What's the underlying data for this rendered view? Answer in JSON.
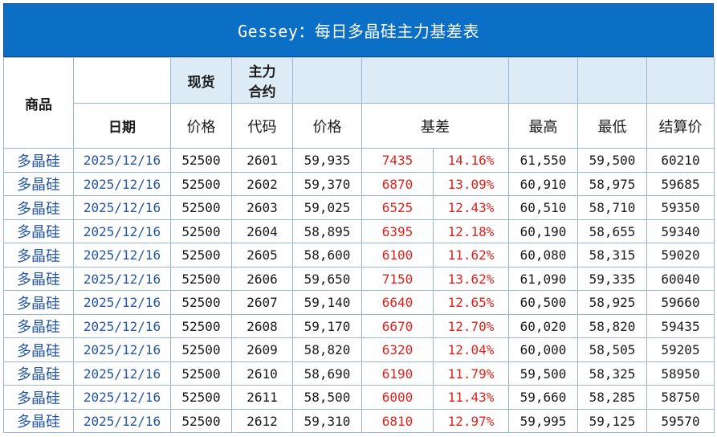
{
  "title": "Gessey：每日多晶硅主力基差表",
  "headers": {
    "commodity": "商品",
    "spot": "现货",
    "main_contract_l1": "主力",
    "main_contract_l2": "合约",
    "date": "日期",
    "spot_price": "价格",
    "contract_code": "代码",
    "price": "价格",
    "basis": "基差",
    "high": "最高",
    "low": "最低",
    "settle": "结算价"
  },
  "rows": [
    {
      "commodity": "多晶硅",
      "date": "2025/12/16",
      "spot": "52500",
      "code": "2601",
      "price": "59,935",
      "basis": "7435",
      "basis_pct": "14.16%",
      "high": "61,550",
      "low": "59,500",
      "settle": "60210"
    },
    {
      "commodity": "多晶硅",
      "date": "2025/12/16",
      "spot": "52500",
      "code": "2602",
      "price": "59,370",
      "basis": "6870",
      "basis_pct": "13.09%",
      "high": "60,910",
      "low": "58,975",
      "settle": "59685"
    },
    {
      "commodity": "多晶硅",
      "date": "2025/12/16",
      "spot": "52500",
      "code": "2603",
      "price": "59,025",
      "basis": "6525",
      "basis_pct": "12.43%",
      "high": "60,510",
      "low": "58,710",
      "settle": "59350"
    },
    {
      "commodity": "多晶硅",
      "date": "2025/12/16",
      "spot": "52500",
      "code": "2604",
      "price": "58,895",
      "basis": "6395",
      "basis_pct": "12.18%",
      "high": "60,190",
      "low": "58,655",
      "settle": "59340"
    },
    {
      "commodity": "多晶硅",
      "date": "2025/12/16",
      "spot": "52500",
      "code": "2605",
      "price": "58,600",
      "basis": "6100",
      "basis_pct": "11.62%",
      "high": "60,080",
      "low": "58,315",
      "settle": "59020"
    },
    {
      "commodity": "多晶硅",
      "date": "2025/12/16",
      "spot": "52500",
      "code": "2606",
      "price": "59,650",
      "basis": "7150",
      "basis_pct": "13.62%",
      "high": "61,090",
      "low": "59,335",
      "settle": "60040"
    },
    {
      "commodity": "多晶硅",
      "date": "2025/12/16",
      "spot": "52500",
      "code": "2607",
      "price": "59,140",
      "basis": "6640",
      "basis_pct": "12.65%",
      "high": "60,500",
      "low": "58,925",
      "settle": "59660"
    },
    {
      "commodity": "多晶硅",
      "date": "2025/12/16",
      "spot": "52500",
      "code": "2608",
      "price": "59,170",
      "basis": "6670",
      "basis_pct": "12.70%",
      "high": "60,020",
      "low": "58,820",
      "settle": "59435"
    },
    {
      "commodity": "多晶硅",
      "date": "2025/12/16",
      "spot": "52500",
      "code": "2609",
      "price": "58,820",
      "basis": "6320",
      "basis_pct": "12.04%",
      "high": "60,000",
      "low": "58,505",
      "settle": "59205"
    },
    {
      "commodity": "多晶硅",
      "date": "2025/12/16",
      "spot": "52500",
      "code": "2610",
      "price": "58,690",
      "basis": "6190",
      "basis_pct": "11.79%",
      "high": "59,500",
      "low": "58,325",
      "settle": "58950"
    },
    {
      "commodity": "多晶硅",
      "date": "2025/12/16",
      "spot": "52500",
      "code": "2611",
      "price": "58,500",
      "basis": "6000",
      "basis_pct": "11.43%",
      "high": "59,660",
      "low": "58,285",
      "settle": "58750"
    },
    {
      "commodity": "多晶硅",
      "date": "2025/12/16",
      "spot": "52500",
      "code": "2612",
      "price": "59,310",
      "basis": "6810",
      "basis_pct": "12.97%",
      "high": "59,995",
      "low": "59,125",
      "settle": "59570"
    }
  ],
  "colors": {
    "title_bg": "#0b6fc6",
    "header_shade": "#ddebf7",
    "grid": "#9ab6d4",
    "blue_text": "#2456a6",
    "red_text": "#e0211b"
  }
}
